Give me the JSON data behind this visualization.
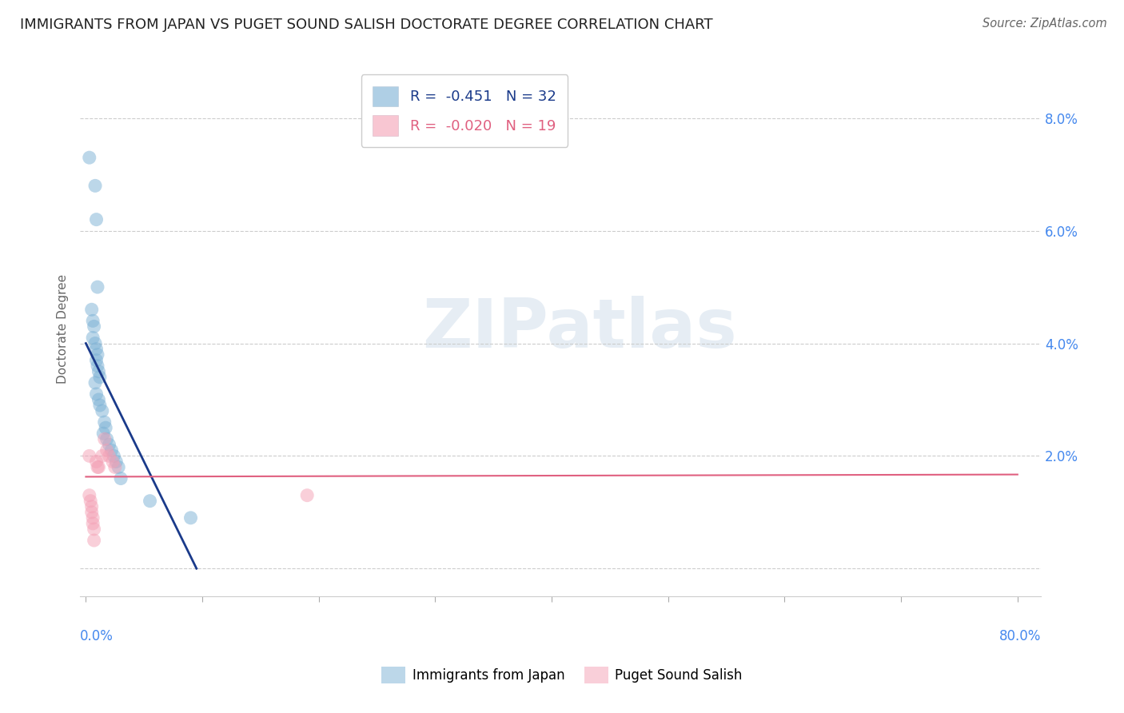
{
  "title": "IMMIGRANTS FROM JAPAN VS PUGET SOUND SALISH DOCTORATE DEGREE CORRELATION CHART",
  "source": "Source: ZipAtlas.com",
  "ylabel": "Doctorate Degree",
  "blue_label": "Immigrants from Japan",
  "pink_label": "Puget Sound Salish",
  "blue_R": -0.451,
  "blue_N": 32,
  "pink_R": -0.02,
  "pink_N": 19,
  "blue_scatter_x": [
    0.003,
    0.008,
    0.009,
    0.01,
    0.005,
    0.006,
    0.007,
    0.006,
    0.008,
    0.009,
    0.01,
    0.009,
    0.01,
    0.011,
    0.012,
    0.008,
    0.009,
    0.011,
    0.012,
    0.014,
    0.016,
    0.017,
    0.015,
    0.018,
    0.02,
    0.022,
    0.024,
    0.026,
    0.028,
    0.03,
    0.055,
    0.09
  ],
  "blue_scatter_y": [
    0.073,
    0.068,
    0.062,
    0.05,
    0.046,
    0.044,
    0.043,
    0.041,
    0.04,
    0.039,
    0.038,
    0.037,
    0.036,
    0.035,
    0.034,
    0.033,
    0.031,
    0.03,
    0.029,
    0.028,
    0.026,
    0.025,
    0.024,
    0.023,
    0.022,
    0.021,
    0.02,
    0.019,
    0.018,
    0.016,
    0.012,
    0.009
  ],
  "pink_scatter_x": [
    0.003,
    0.003,
    0.004,
    0.005,
    0.005,
    0.006,
    0.006,
    0.007,
    0.009,
    0.011,
    0.016,
    0.018,
    0.02,
    0.023,
    0.025,
    0.01,
    0.014,
    0.19,
    0.007
  ],
  "pink_scatter_y": [
    0.02,
    0.013,
    0.012,
    0.011,
    0.01,
    0.009,
    0.008,
    0.007,
    0.019,
    0.018,
    0.023,
    0.021,
    0.02,
    0.019,
    0.018,
    0.018,
    0.02,
    0.013,
    0.005
  ],
  "blue_line_x": [
    0.0,
    0.095
  ],
  "blue_line_y": [
    0.04,
    0.0
  ],
  "pink_line_x": [
    0.0,
    0.8
  ],
  "pink_line_y": [
    0.0163,
    0.0167
  ],
  "xlim": [
    -0.005,
    0.82
  ],
  "ylim": [
    -0.005,
    0.09
  ],
  "yticks": [
    0.0,
    0.02,
    0.04,
    0.06,
    0.08
  ],
  "ytick_labels": [
    "",
    "2.0%",
    "4.0%",
    "6.0%",
    "8.0%"
  ],
  "xtick_positions": [
    0.0,
    0.1,
    0.2,
    0.3,
    0.4,
    0.5,
    0.6,
    0.7,
    0.8
  ],
  "watermark": "ZIPatlas",
  "bg_color": "#ffffff",
  "blue_color": "#7ab0d4",
  "pink_color": "#f4a0b5",
  "trend_blue": "#1a3a8a",
  "trend_pink": "#e06080",
  "title_color": "#222222",
  "axis_color": "#4488ee",
  "grid_color": "#cccccc",
  "legend_text_color": "#1a3a8a",
  "legend_text_pink_color": "#e06080"
}
